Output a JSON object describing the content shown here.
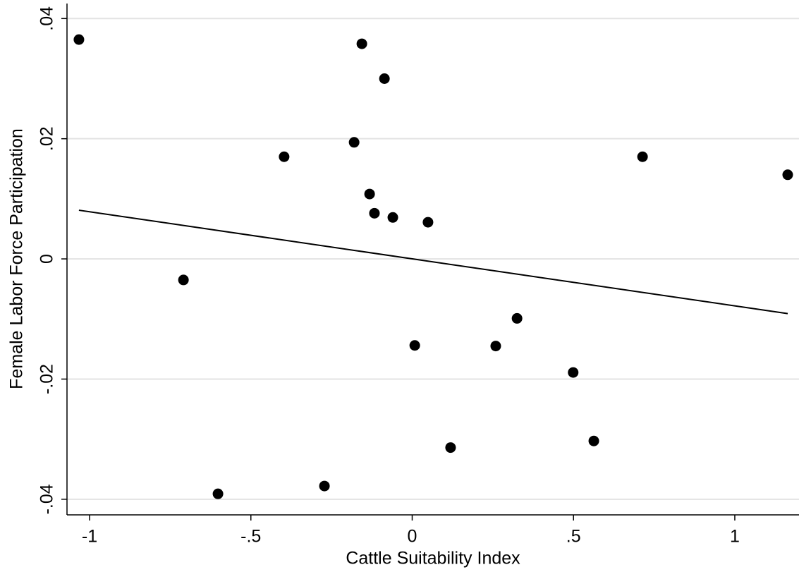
{
  "chart_data": {
    "type": "scatter",
    "x_label": "Cattle Suitability Index",
    "y_label": "Female Labor Force Participation",
    "xlim": [
      -1.07,
      1.199
    ],
    "ylim": [
      -0.0426,
      0.0425
    ],
    "xticks": [
      -1,
      {
        "value": -0.5,
        "label": "-.5"
      },
      0,
      {
        "value": 0.5,
        "label": ".5"
      },
      1
    ],
    "yticks": [
      {
        "value": -0.04,
        "label": "-.04"
      },
      {
        "value": -0.02,
        "label": "-.02"
      },
      0,
      {
        "value": 0.02,
        "label": ".02"
      },
      {
        "value": 0.04,
        "label": ".04"
      }
    ],
    "grid": true,
    "series": [
      {
        "color": "#000000",
        "mode": "markers",
        "x": [
          -1.033,
          -0.156,
          -0.086,
          -0.397,
          -0.18,
          -0.132,
          -0.117,
          -0.06,
          0.049,
          0.714,
          1.164,
          -0.709,
          0.325,
          0.008,
          0.259,
          0.499,
          0.119,
          0.563,
          -0.272,
          -0.602
        ],
        "values": [
          0.0365,
          0.0358,
          0.03,
          0.017,
          0.0194,
          0.0108,
          0.0076,
          0.0069,
          0.0061,
          0.017,
          0.014,
          -0.0035,
          -0.0099,
          -0.0144,
          -0.0145,
          -0.0189,
          -0.0314,
          -0.0303,
          -0.0378,
          -0.0391
        ]
      },
      {
        "color": "#000000",
        "mode": "line",
        "x": [
          -1.033,
          1.164
        ],
        "values": [
          0.0081,
          -0.0091
        ]
      }
    ]
  }
}
